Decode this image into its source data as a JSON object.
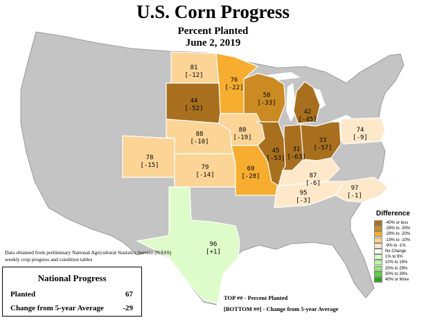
{
  "header": {
    "title": "U.S. Corn Progress",
    "subtitle": "Percent Planted",
    "date": "June 2, 2019"
  },
  "states": [
    {
      "id": "ND",
      "top": "81",
      "bottom": "[-12]",
      "color": "#fbd496"
    },
    {
      "id": "MN",
      "top": "76",
      "bottom": "[-22]",
      "color": "#f6ad30"
    },
    {
      "id": "SD",
      "top": "44",
      "bottom": "[-52]",
      "color": "#a8701e"
    },
    {
      "id": "WI",
      "top": "58",
      "bottom": "[-33]",
      "color": "#cc8a22"
    },
    {
      "id": "MI",
      "top": "42",
      "bottom": "[-45]",
      "color": "#a8701e"
    },
    {
      "id": "NE",
      "top": "88",
      "bottom": "[-10]",
      "color": "#fbd496"
    },
    {
      "id": "IA",
      "top": "80",
      "bottom": "[-19]",
      "color": "#fbd496"
    },
    {
      "id": "CO",
      "top": "78",
      "bottom": "[-15]",
      "color": "#fbd496"
    },
    {
      "id": "KS",
      "top": "79",
      "bottom": "[-14]",
      "color": "#fbd496"
    },
    {
      "id": "MO",
      "top": "69",
      "bottom": "[-28]",
      "color": "#f6ad30"
    },
    {
      "id": "IL",
      "top": "45",
      "bottom": "[-53]",
      "color": "#a8701e"
    },
    {
      "id": "IN",
      "top": "31",
      "bottom": "[-63]",
      "color": "#a8701e"
    },
    {
      "id": "OH",
      "top": "33",
      "bottom": "[-57]",
      "color": "#a8701e"
    },
    {
      "id": "PA",
      "top": "74",
      "bottom": "[-9]",
      "color": "#fde9c9"
    },
    {
      "id": "KY",
      "top": "87",
      "bottom": "[-6]",
      "color": "#fde9c9"
    },
    {
      "id": "TN",
      "top": "95",
      "bottom": "[-3]",
      "color": "#fde9c9"
    },
    {
      "id": "NC",
      "top": "97",
      "bottom": "[-1]",
      "color": "#fde9c9"
    },
    {
      "id": "TX",
      "top": "96",
      "bottom": "[+1]",
      "color": "#ddfcc9"
    }
  ],
  "legend": {
    "title": "Difference",
    "items": [
      {
        "label": "-40% or less",
        "color": "#a8701e"
      },
      {
        "label": "-39% to -30%",
        "color": "#cc8a22"
      },
      {
        "label": "-29% to -20%",
        "color": "#f6ad30"
      },
      {
        "label": "-19% to -10%",
        "color": "#fbd496"
      },
      {
        "label": "-9% to -1%",
        "color": "#fde9c9"
      },
      {
        "label": "No Change",
        "color": "#ffffff"
      },
      {
        "label": "1% to 9%",
        "color": "#ddfcc9"
      },
      {
        "label": "10% to 19%",
        "color": "#b9f7a4"
      },
      {
        "label": "20% to 29%",
        "color": "#8fe877"
      },
      {
        "label": "30% to 39%",
        "color": "#5cd042"
      },
      {
        "label": "40% or More",
        "color": "#2fa51e"
      }
    ]
  },
  "note": "Data obtained from preliminary National Agricultural Statistics Service (NASS) weekly crop progress and condition tables",
  "national": {
    "title": "National Progress",
    "planted_label": "Planted",
    "planted_value": "67",
    "change_label": "Change from 5-year Average",
    "change_value": "-29"
  },
  "key": {
    "top": "TOP ## - Percent Planted",
    "bottom": "[BOTTOM ##] - Change from 5-year Average"
  },
  "colors": {
    "other_states": "#c4c4c4",
    "border": "#ffffff"
  }
}
